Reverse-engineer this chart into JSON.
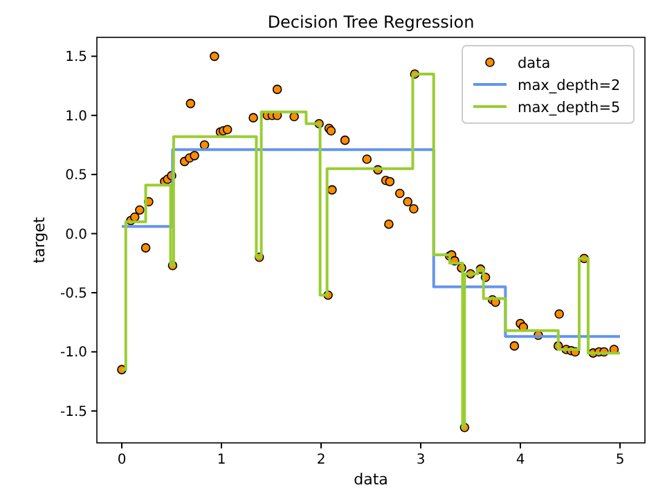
{
  "chart_data": {
    "type": "scatter",
    "title": "Decision Tree Regression",
    "xlabel": "data",
    "ylabel": "target",
    "xlim": [
      -0.25,
      5.25
    ],
    "ylim": [
      -1.77,
      1.66
    ],
    "xticks": [
      0,
      1,
      2,
      3,
      4,
      5
    ],
    "yticks": [
      -1.5,
      {
        "value": -1,
        "label": "-1.0"
      },
      -0.5,
      {
        "value": 0,
        "label": "0.0"
      },
      0.5,
      {
        "value": 1,
        "label": "1.0"
      },
      1.5
    ],
    "legend": "top right",
    "grid": false,
    "series": [
      {
        "name": "data",
        "marker": "circle",
        "color": "#ff8c00",
        "x": [
          0.0,
          0.09,
          0.13,
          0.18,
          0.24,
          0.27,
          0.43,
          0.46,
          0.5,
          0.51,
          0.63,
          0.68,
          0.69,
          0.73,
          0.83,
          0.93,
          0.99,
          1.02,
          1.06,
          1.32,
          1.38,
          1.46,
          1.51,
          1.56,
          1.56,
          1.73,
          1.98,
          2.07,
          2.08,
          2.1,
          2.11,
          2.24,
          2.46,
          2.57,
          2.65,
          2.68,
          2.69,
          2.79,
          2.87,
          2.93,
          2.94,
          3.29,
          3.31,
          3.34,
          3.41,
          3.44,
          3.5,
          3.6,
          3.65,
          3.72,
          3.75,
          3.94,
          4.0,
          4.03,
          4.18,
          4.38,
          4.39,
          4.46,
          4.51,
          4.55,
          4.64,
          4.73,
          4.79,
          4.84,
          4.94
        ],
        "values": [
          -1.15,
          0.11,
          0.14,
          0.2,
          -0.12,
          0.27,
          0.44,
          0.46,
          0.49,
          -0.27,
          0.61,
          0.64,
          1.1,
          0.66,
          0.75,
          1.5,
          0.86,
          0.87,
          0.88,
          0.98,
          -0.2,
          1.0,
          1.0,
          1.0,
          1.22,
          0.99,
          0.93,
          -0.52,
          0.89,
          0.87,
          0.37,
          0.79,
          0.63,
          0.54,
          0.45,
          0.08,
          0.44,
          0.34,
          0.27,
          0.21,
          1.35,
          -0.19,
          -0.18,
          -0.23,
          -0.29,
          -1.64,
          -0.34,
          -0.3,
          -0.37,
          -0.56,
          -0.58,
          -0.95,
          -0.76,
          -0.79,
          -0.86,
          -0.95,
          -0.68,
          -0.98,
          -0.99,
          -1.0,
          -0.21,
          -1.01,
          -1.0,
          -1.0,
          -0.98
        ]
      },
      {
        "name": "max_depth=2",
        "type": "step",
        "line_style": "solid",
        "color": "#6495ed",
        "x": [
          0,
          0.51,
          3.13,
          3.85,
          5
        ],
        "values": [
          0.06,
          0.71,
          -0.45,
          -0.87,
          -0.87
        ]
      },
      {
        "name": "max_depth=5",
        "type": "step",
        "line_style": "solid",
        "color": "#9acd32",
        "x": [
          0,
          0.04,
          0.24,
          0.49,
          0.52,
          1.35,
          1.4,
          1.85,
          1.99,
          2.06,
          2.92,
          3.13,
          3.29,
          3.42,
          3.44,
          3.57,
          3.63,
          3.85,
          4.38,
          4.59,
          4.68,
          5
        ],
        "values": [
          -1.15,
          0.1,
          0.41,
          -0.27,
          0.82,
          -0.2,
          1.03,
          0.93,
          -0.52,
          0.55,
          1.35,
          -0.18,
          -0.25,
          -1.64,
          -0.34,
          -0.3,
          -0.55,
          -0.82,
          -0.98,
          -0.21,
          -1.01,
          -1.01
        ]
      }
    ]
  }
}
